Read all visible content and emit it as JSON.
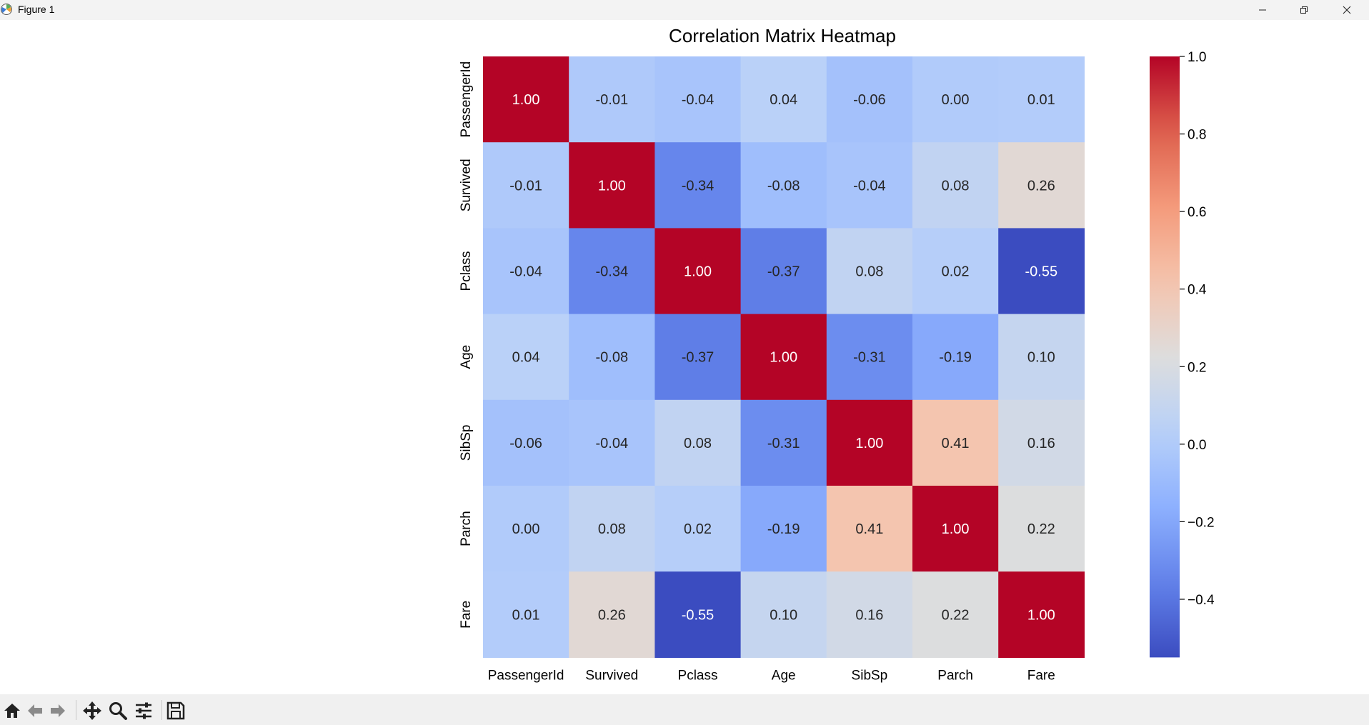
{
  "window": {
    "title": "Figure 1",
    "controls": [
      "minimize",
      "restore",
      "close"
    ]
  },
  "toolbar": {
    "buttons": [
      "home-icon",
      "back-icon",
      "forward-icon",
      "pan-icon",
      "zoom-icon",
      "configure-subplots-icon",
      "save-icon"
    ]
  },
  "chart_data": {
    "type": "heatmap",
    "title": "Correlation Matrix Heatmap",
    "xlabel": "",
    "ylabel": "",
    "x_categories": [
      "PassengerId",
      "Survived",
      "Pclass",
      "Age",
      "SibSp",
      "Parch",
      "Fare"
    ],
    "y_categories": [
      "PassengerId",
      "Survived",
      "Pclass",
      "Age",
      "SibSp",
      "Parch",
      "Fare"
    ],
    "values": [
      [
        1.0,
        -0.01,
        -0.04,
        0.04,
        -0.06,
        -0.0,
        0.01
      ],
      [
        -0.01,
        1.0,
        -0.34,
        -0.08,
        -0.04,
        0.08,
        0.26
      ],
      [
        -0.04,
        -0.34,
        1.0,
        -0.37,
        0.08,
        0.02,
        -0.55
      ],
      [
        0.04,
        -0.08,
        -0.37,
        1.0,
        -0.31,
        -0.19,
        0.1
      ],
      [
        -0.06,
        -0.04,
        0.08,
        -0.31,
        1.0,
        0.41,
        0.16
      ],
      [
        -0.0,
        0.08,
        0.02,
        -0.19,
        0.41,
        1.0,
        0.22
      ],
      [
        0.01,
        0.26,
        -0.55,
        0.1,
        0.16,
        0.22,
        1.0
      ]
    ],
    "value_format": "0.00",
    "colormap": "coolwarm",
    "vmin": -0.55,
    "vmax": 1.0,
    "colorbar_ticks": [
      "1.0",
      "0.8",
      "0.6",
      "0.4",
      "0.2",
      "0.0",
      "−0.2",
      "−0.4"
    ],
    "colorbar_tick_values": [
      1.0,
      0.8,
      0.6,
      0.4,
      0.2,
      0.0,
      -0.2,
      -0.4
    ],
    "grid": false,
    "legend": "colorbar-right"
  }
}
